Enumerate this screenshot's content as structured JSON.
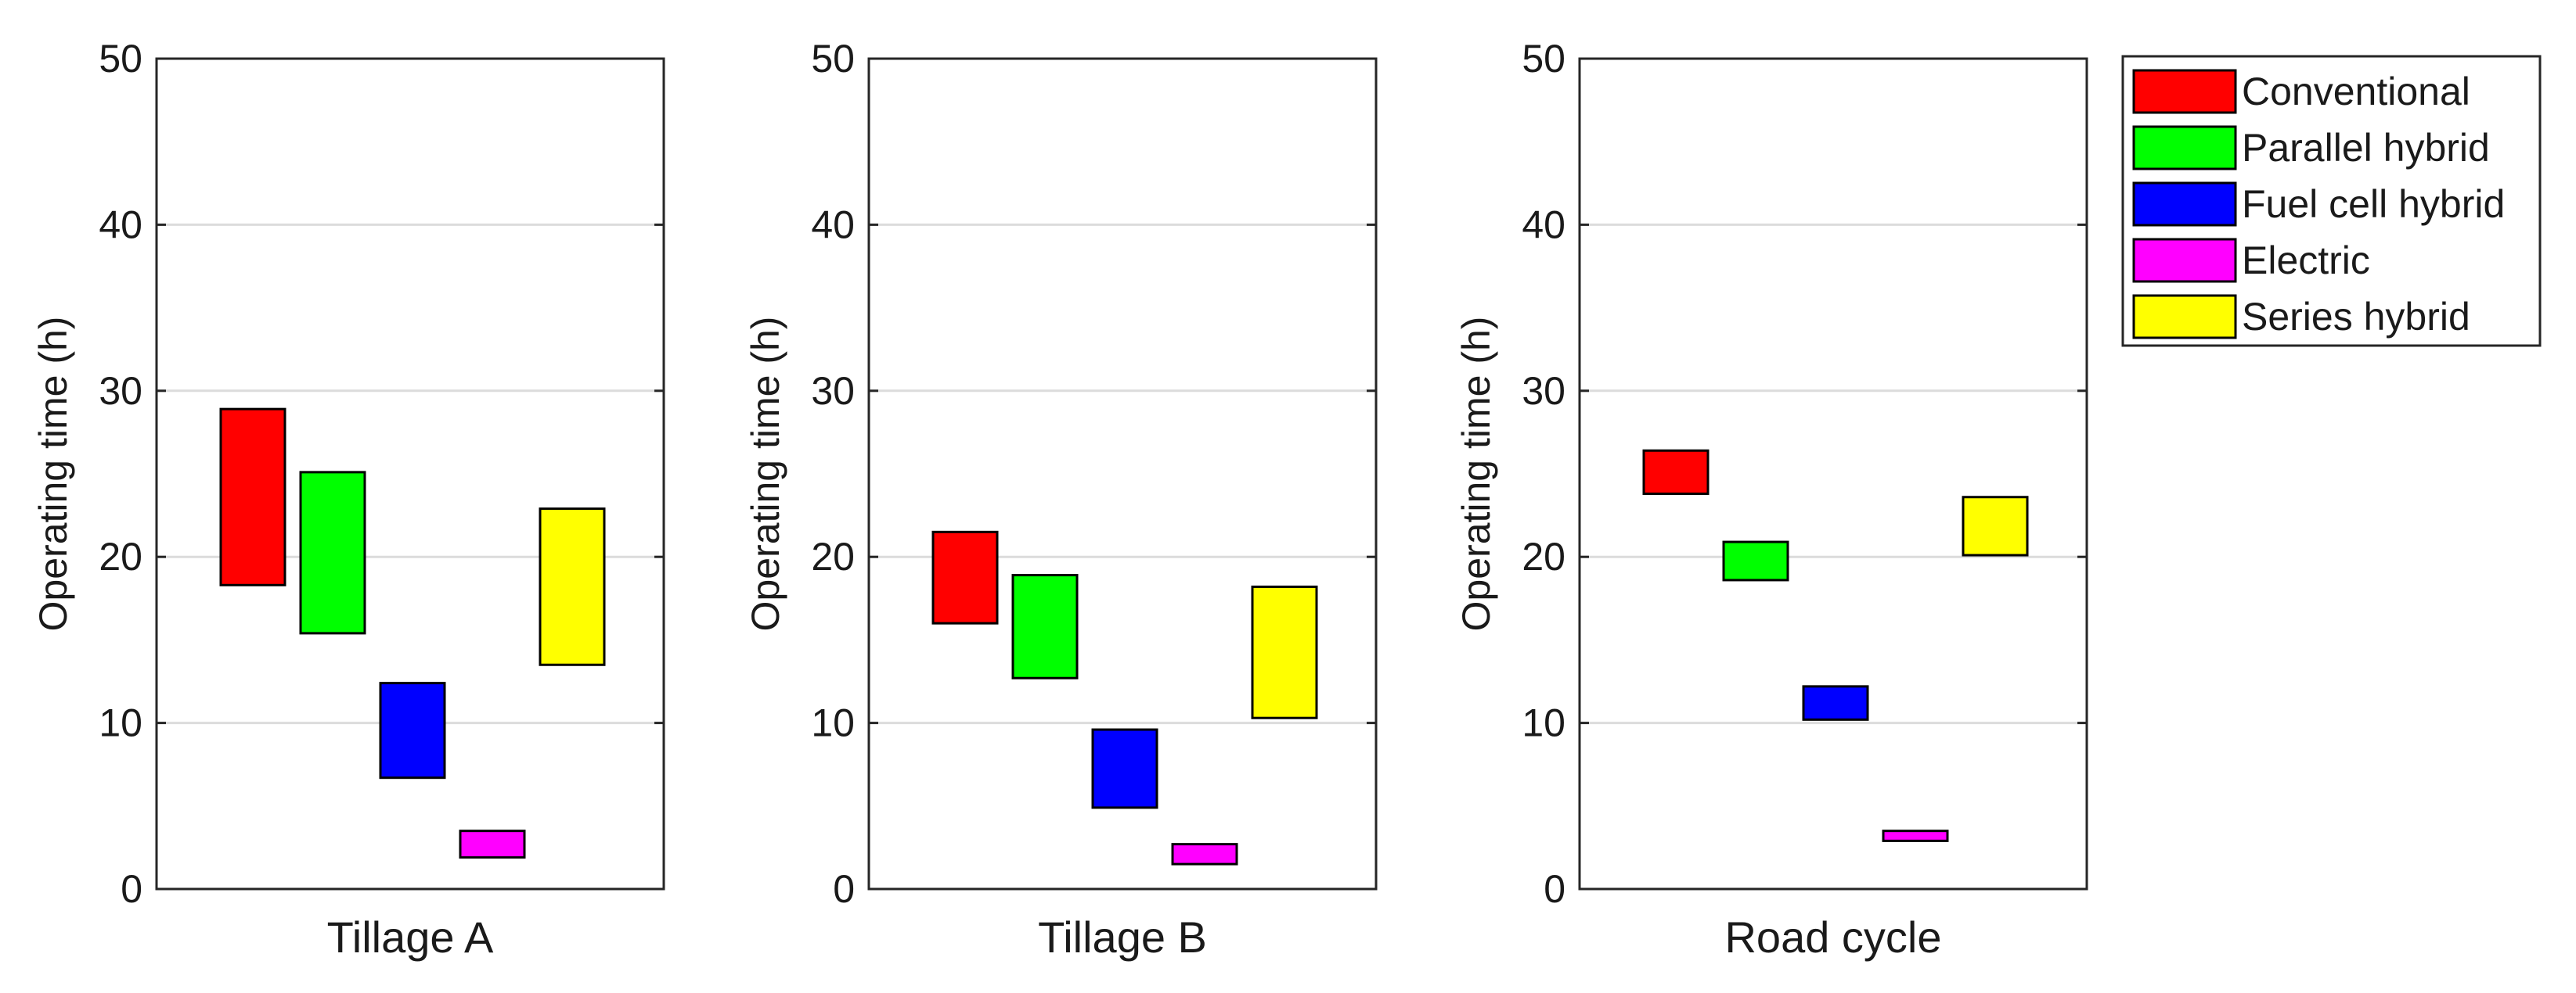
{
  "chart_data": {
    "type": "floating-bar",
    "ylabel": "Operating time (h)",
    "ylim": [
      0,
      50
    ],
    "yticks": [
      0,
      10,
      20,
      30,
      40,
      50
    ],
    "grid": "horizontal",
    "legend_position": "outside-top-right",
    "series": [
      {
        "name": "Conventional",
        "color": "#ff0000"
      },
      {
        "name": "Parallel hybrid",
        "color": "#00ff00"
      },
      {
        "name": "Fuel cell hybrid",
        "color": "#0000ff"
      },
      {
        "name": "Electric",
        "color": "#ff00ff"
      },
      {
        "name": "Series hybrid",
        "color": "#ffff00"
      }
    ],
    "panels": [
      {
        "xlabel": "Tillage A",
        "ranges": [
          [
            18.3,
            28.9
          ],
          [
            15.4,
            25.1
          ],
          [
            6.7,
            12.4
          ],
          [
            1.9,
            3.5
          ],
          [
            13.5,
            22.9
          ]
        ]
      },
      {
        "xlabel": "Tillage B",
        "ranges": [
          [
            16.0,
            21.5
          ],
          [
            12.7,
            18.9
          ],
          [
            4.9,
            9.6
          ],
          [
            1.5,
            2.7
          ],
          [
            10.3,
            18.2
          ]
        ]
      },
      {
        "xlabel": "Road cycle",
        "ranges": [
          [
            23.8,
            26.4
          ],
          [
            18.6,
            20.9
          ],
          [
            10.2,
            12.2
          ],
          [
            2.9,
            3.5
          ],
          [
            20.1,
            23.6
          ]
        ]
      }
    ]
  }
}
